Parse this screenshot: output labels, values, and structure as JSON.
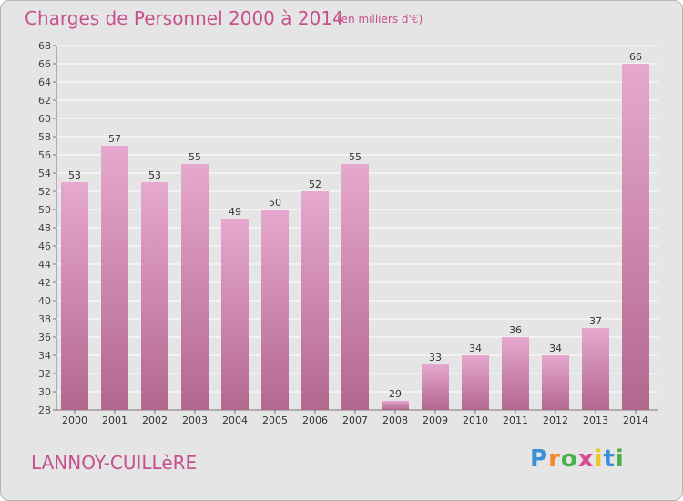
{
  "header": {
    "title": "Charges de Personnel 2000 à 2014",
    "subtitle": "(en milliers d'€)"
  },
  "footer": {
    "place": "LANNOY-CUILLèRE",
    "logo": "Proxiti"
  },
  "colors": {
    "bar_light": "#e6a8cf",
    "bar_dark": "#b3678f",
    "text_accent": "#c7508f",
    "background": "#e5e5e5",
    "grid": "#ffffff"
  },
  "chart_data": {
    "type": "bar",
    "title": "Charges de Personnel 2000 à 2014",
    "subtitle": "(en milliers d'€)",
    "categories": [
      "2000",
      "2001",
      "2002",
      "2003",
      "2004",
      "2005",
      "2006",
      "2007",
      "2008",
      "2009",
      "2010",
      "2011",
      "2012",
      "2013",
      "2014"
    ],
    "values": [
      53,
      57,
      53,
      55,
      49,
      50,
      52,
      55,
      29,
      33,
      34,
      36,
      34,
      37,
      66
    ],
    "ylim": [
      28,
      68
    ],
    "yticks": [
      28,
      30,
      32,
      34,
      36,
      38,
      40,
      42,
      44,
      46,
      48,
      50,
      52,
      54,
      56,
      58,
      60,
      62,
      64,
      66,
      68
    ],
    "grid": true,
    "data_labels": true
  }
}
